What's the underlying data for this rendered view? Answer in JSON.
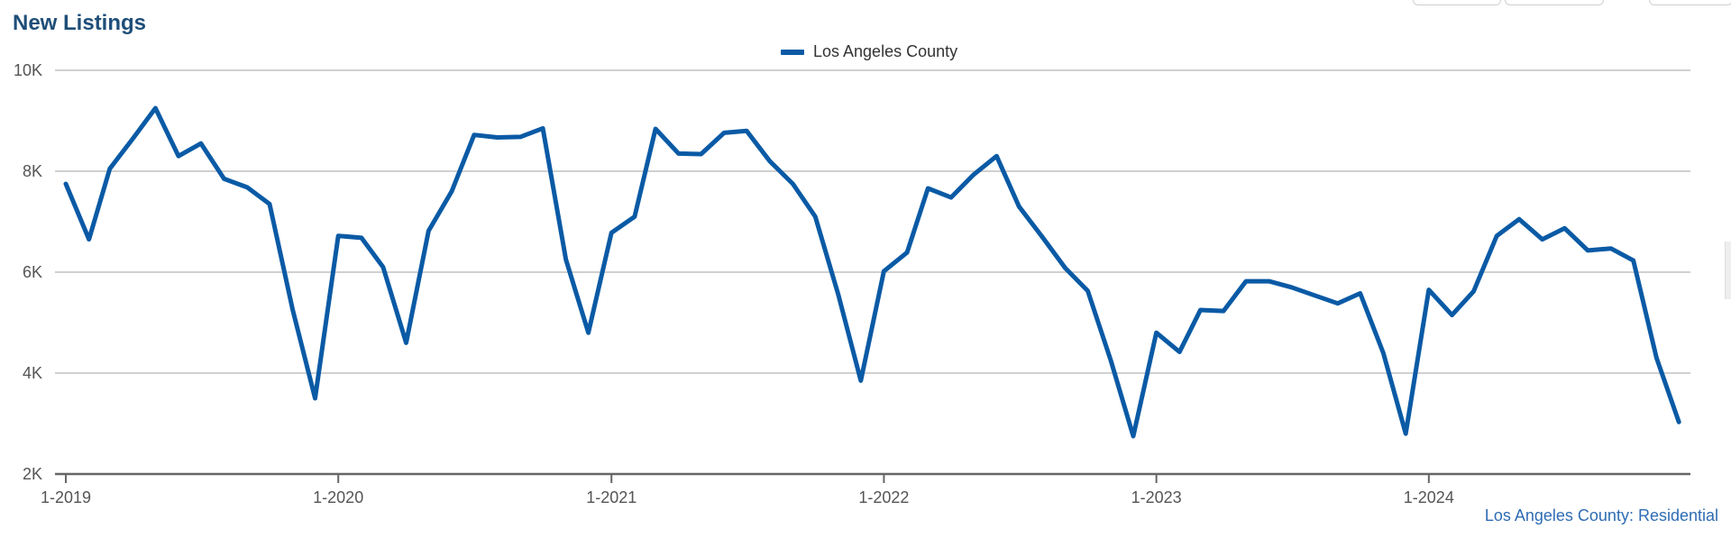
{
  "header": {
    "title": "New Listings"
  },
  "footer": {
    "source": "Los Angeles County: Residential"
  },
  "chart_data": {
    "type": "line",
    "title": "New Listings",
    "x_axis": {
      "ticks": [
        "1-2019",
        "1-2020",
        "1-2021",
        "1-2022",
        "1-2023",
        "1-2024"
      ]
    },
    "y_axis": {
      "ticks": [
        "2K",
        "4K",
        "6K",
        "8K",
        "10K"
      ],
      "ylim": [
        2000,
        10000
      ]
    },
    "grid": true,
    "legend_position": "top-center",
    "series": [
      {
        "name": "Los Angeles County",
        "color": "#0a5aa5",
        "x": [
          "2019-01",
          "2019-02",
          "2019-03",
          "2019-04",
          "2019-05",
          "2019-06",
          "2019-07",
          "2019-08",
          "2019-09",
          "2019-10",
          "2019-11",
          "2019-12",
          "2020-01",
          "2020-02",
          "2020-03",
          "2020-04",
          "2020-05",
          "2020-06",
          "2020-07",
          "2020-08",
          "2020-09",
          "2020-10",
          "2020-11",
          "2020-12",
          "2021-01",
          "2021-02",
          "2021-03",
          "2021-04",
          "2021-05",
          "2021-06",
          "2021-07",
          "2021-08",
          "2021-09",
          "2021-10",
          "2021-11",
          "2021-12",
          "2022-01",
          "2022-02",
          "2022-03",
          "2022-04",
          "2022-05",
          "2022-06",
          "2022-07",
          "2022-08",
          "2022-09",
          "2022-10",
          "2022-11",
          "2022-12",
          "2023-01",
          "2023-02",
          "2023-03",
          "2023-04",
          "2023-05",
          "2023-06",
          "2023-07",
          "2023-08",
          "2023-09",
          "2023-10",
          "2023-11",
          "2023-12",
          "2024-01",
          "2024-02",
          "2024-03",
          "2024-04",
          "2024-05",
          "2024-06",
          "2024-07",
          "2024-08",
          "2024-09",
          "2024-10",
          "2024-11",
          "2024-12"
        ],
        "values": [
          7750,
          6650,
          8050,
          8650,
          9250,
          8300,
          8550,
          7850,
          7680,
          7350,
          5250,
          3500,
          6720,
          6680,
          6100,
          4600,
          6820,
          7600,
          8720,
          8670,
          8680,
          8850,
          6250,
          4800,
          6780,
          7100,
          8840,
          8350,
          8340,
          8760,
          8800,
          8200,
          7750,
          7100,
          5550,
          3850,
          6020,
          6390,
          7660,
          7480,
          7930,
          8300,
          7300,
          6700,
          6080,
          5630,
          4250,
          2750,
          4800,
          4420,
          5250,
          5230,
          5820,
          5820,
          5700,
          5540,
          5380,
          5580,
          4400,
          2800,
          5650,
          5150,
          5620,
          6720,
          7050,
          6650,
          6870,
          6430,
          6470,
          6230,
          4300,
          3030
        ]
      }
    ]
  }
}
